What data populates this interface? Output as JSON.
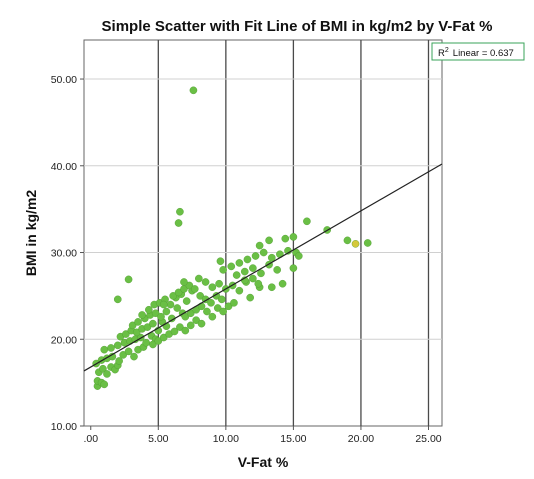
{
  "chart_data": {
    "type": "scatter",
    "title": "Simple Scatter with Fit Line of BMI in kg/m2 by V-Fat %",
    "xlabel": "V-Fat %",
    "ylabel": "BMI in kg/m2",
    "xlim": [
      -0.5,
      26.0
    ],
    "ylim": [
      10,
      54.5
    ],
    "x_ticks": [
      0,
      5,
      10,
      15,
      20,
      25
    ],
    "x_tick_labels": [
      ".00",
      "5.00",
      "10.00",
      "15.00",
      "20.00",
      "25.00"
    ],
    "y_ticks": [
      10,
      20,
      30,
      40,
      50
    ],
    "y_tick_labels": [
      "10.00",
      "20.00",
      "30.00",
      "40.00",
      "50.00"
    ],
    "grid": true,
    "legend_position": "top-right",
    "legend": {
      "label_prefix": "R",
      "superscript": "2",
      "label_rest": "Linear = 0.637"
    },
    "fit_line": {
      "intercept": 16.8,
      "slope": 0.9
    },
    "colors": {
      "point": "#6abf45",
      "point_edge": "#4e9a2e",
      "highlight_point": "#d4c83a",
      "line": "#222222",
      "legend_border": "#3aa35a"
    },
    "points": [
      [
        0.5,
        14.6
      ],
      [
        0.5,
        15.2
      ],
      [
        0.8,
        15.0
      ],
      [
        1.0,
        14.8
      ],
      [
        0.6,
        16.2
      ],
      [
        0.9,
        16.6
      ],
      [
        1.2,
        16.0
      ],
      [
        1.5,
        16.8
      ],
      [
        1.8,
        16.5
      ],
      [
        2.0,
        17.0
      ],
      [
        0.4,
        17.2
      ],
      [
        0.8,
        17.6
      ],
      [
        1.2,
        17.8
      ],
      [
        1.6,
        18.0
      ],
      [
        2.1,
        17.5
      ],
      [
        2.4,
        18.2
      ],
      [
        2.8,
        18.6
      ],
      [
        3.2,
        18.0
      ],
      [
        3.5,
        18.8
      ],
      [
        3.9,
        19.1
      ],
      [
        1.0,
        18.8
      ],
      [
        1.5,
        19.0
      ],
      [
        2.0,
        19.3
      ],
      [
        2.5,
        19.6
      ],
      [
        2.9,
        19.8
      ],
      [
        3.3,
        20.0
      ],
      [
        3.7,
        20.2
      ],
      [
        4.1,
        19.6
      ],
      [
        4.5,
        20.4
      ],
      [
        4.8,
        20.0
      ],
      [
        2.2,
        20.3
      ],
      [
        2.6,
        20.6
      ],
      [
        3.0,
        21.0
      ],
      [
        3.4,
        20.8
      ],
      [
        3.8,
        21.2
      ],
      [
        4.2,
        21.4
      ],
      [
        4.6,
        21.8
      ],
      [
        5.0,
        21.0
      ],
      [
        5.3,
        22.0
      ],
      [
        5.6,
        21.5
      ],
      [
        3.1,
        21.6
      ],
      [
        3.5,
        22.0
      ],
      [
        4.0,
        22.4
      ],
      [
        4.4,
        22.8
      ],
      [
        4.8,
        23.0
      ],
      [
        5.2,
        22.6
      ],
      [
        5.6,
        23.2
      ],
      [
        6.0,
        22.4
      ],
      [
        6.4,
        23.6
      ],
      [
        6.8,
        23.0
      ],
      [
        3.8,
        22.8
      ],
      [
        4.3,
        23.4
      ],
      [
        4.7,
        24.0
      ],
      [
        5.1,
        24.2
      ],
      [
        5.5,
        24.6
      ],
      [
        5.9,
        24.0
      ],
      [
        6.3,
        24.8
      ],
      [
        6.7,
        25.2
      ],
      [
        7.1,
        24.4
      ],
      [
        7.5,
        25.6
      ],
      [
        4.6,
        19.4
      ],
      [
        5.0,
        19.8
      ],
      [
        5.4,
        20.2
      ],
      [
        5.8,
        20.6
      ],
      [
        6.2,
        20.9
      ],
      [
        6.6,
        21.4
      ],
      [
        7.0,
        21.0
      ],
      [
        7.4,
        21.6
      ],
      [
        7.8,
        22.2
      ],
      [
        8.2,
        21.8
      ],
      [
        6.1,
        25.0
      ],
      [
        6.5,
        25.4
      ],
      [
        6.9,
        25.8
      ],
      [
        7.3,
        26.2
      ],
      [
        7.7,
        25.8
      ],
      [
        8.1,
        25.0
      ],
      [
        8.5,
        24.6
      ],
      [
        8.9,
        24.2
      ],
      [
        9.3,
        25.0
      ],
      [
        9.7,
        24.6
      ],
      [
        7.0,
        22.6
      ],
      [
        7.4,
        23.0
      ],
      [
        7.8,
        23.4
      ],
      [
        8.2,
        23.8
      ],
      [
        8.6,
        23.2
      ],
      [
        9.0,
        22.6
      ],
      [
        9.4,
        23.6
      ],
      [
        9.8,
        23.2
      ],
      [
        10.2,
        23.8
      ],
      [
        10.6,
        24.2
      ],
      [
        8.0,
        27.0
      ],
      [
        8.5,
        26.6
      ],
      [
        9.0,
        26.0
      ],
      [
        9.5,
        26.4
      ],
      [
        10.0,
        25.8
      ],
      [
        10.5,
        26.2
      ],
      [
        11.0,
        25.6
      ],
      [
        11.5,
        26.6
      ],
      [
        12.0,
        27.0
      ],
      [
        12.5,
        26.0
      ],
      [
        9.8,
        28.0
      ],
      [
        10.4,
        28.4
      ],
      [
        11.0,
        28.8
      ],
      [
        11.6,
        29.2
      ],
      [
        12.2,
        29.6
      ],
      [
        12.8,
        30.0
      ],
      [
        13.4,
        29.4
      ],
      [
        14.0,
        29.8
      ],
      [
        14.6,
        30.2
      ],
      [
        15.2,
        30.0
      ],
      [
        10.8,
        27.4
      ],
      [
        11.4,
        27.8
      ],
      [
        12.0,
        28.2
      ],
      [
        12.6,
        27.6
      ],
      [
        13.2,
        28.6
      ],
      [
        13.8,
        28.0
      ],
      [
        15.0,
        28.2
      ],
      [
        14.2,
        26.4
      ],
      [
        13.4,
        26.0
      ],
      [
        11.8,
        24.8
      ],
      [
        12.5,
        30.8
      ],
      [
        13.2,
        31.4
      ],
      [
        14.4,
        31.6
      ],
      [
        15.0,
        31.8
      ],
      [
        15.4,
        29.6
      ],
      [
        16.0,
        33.6
      ],
      [
        17.5,
        32.6
      ],
      [
        19.0,
        31.4
      ],
      [
        19.6,
        31.0
      ],
      [
        20.5,
        31.1
      ],
      [
        2.8,
        26.9
      ],
      [
        2.0,
        24.6
      ],
      [
        5.4,
        24.0
      ],
      [
        9.6,
        29.0
      ],
      [
        11.4,
        26.8
      ],
      [
        12.4,
        26.4
      ],
      [
        6.5,
        33.4
      ],
      [
        6.6,
        34.7
      ],
      [
        7.6,
        48.7
      ],
      [
        6.9,
        26.6
      ]
    ],
    "highlight_index": 128
  }
}
